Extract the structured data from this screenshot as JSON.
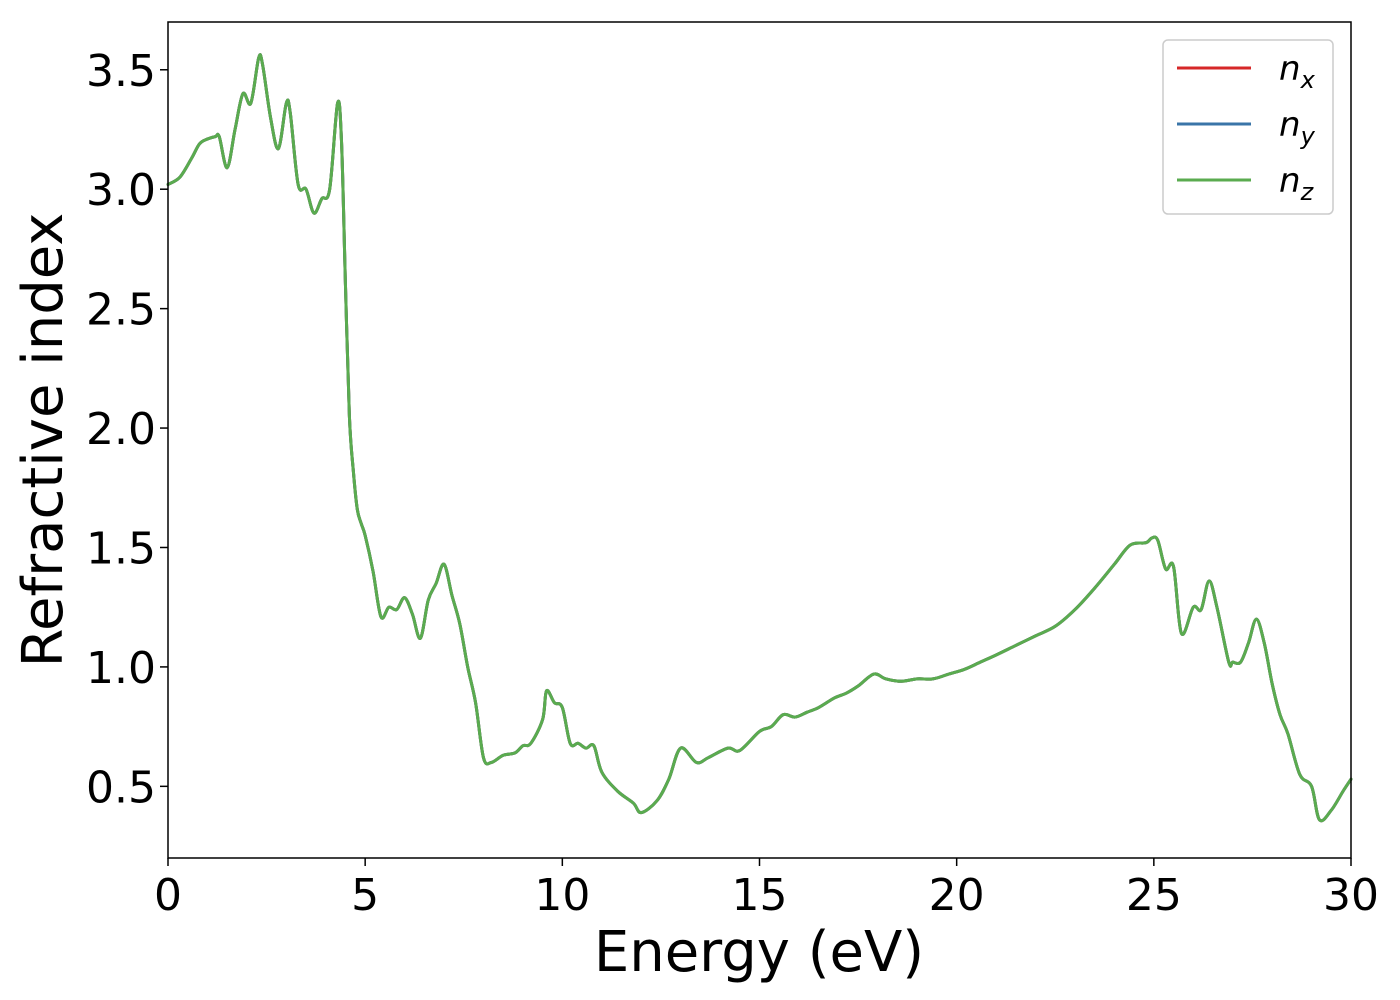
{
  "chart_data": {
    "type": "line",
    "title": "",
    "xlabel": "Energy (eV)",
    "ylabel": "Refractive index",
    "xlim": [
      0,
      30
    ],
    "ylim": [
      0.2,
      3.7
    ],
    "xticks": [
      0,
      5,
      10,
      15,
      20,
      25,
      30
    ],
    "xtick_labels": [
      "0",
      "5",
      "10",
      "15",
      "20",
      "25",
      "30"
    ],
    "yticks": [
      0.5,
      1.0,
      1.5,
      2.0,
      2.5,
      3.0,
      3.5
    ],
    "ytick_labels": [
      "0.5",
      "1.0",
      "1.5",
      "2.0",
      "2.5",
      "3.0",
      "3.5"
    ],
    "grid": false,
    "legend_position": "top-right",
    "colors": {
      "n_x": "#d62728",
      "n_y": "#3a75a8",
      "n_z": "#5aab4f",
      "axes": "#000000",
      "legend_border": "#cccccc"
    },
    "x": [
      0,
      0.3,
      0.6,
      0.8,
      1.0,
      1.2,
      1.3,
      1.5,
      1.7,
      1.9,
      2.1,
      2.3,
      2.4,
      2.6,
      2.8,
      3.0,
      3.1,
      3.3,
      3.5,
      3.7,
      3.9,
      4.1,
      4.3,
      4.4,
      4.5,
      4.6,
      4.7,
      4.8,
      4.9,
      5.0,
      5.2,
      5.4,
      5.6,
      5.8,
      6.0,
      6.2,
      6.4,
      6.6,
      6.8,
      7.0,
      7.2,
      7.4,
      7.6,
      7.8,
      8.0,
      8.2,
      8.5,
      8.8,
      9.0,
      9.2,
      9.5,
      9.6,
      9.8,
      10.0,
      10.2,
      10.4,
      10.6,
      10.8,
      11.0,
      11.4,
      11.8,
      12.0,
      12.4,
      12.7,
      13.0,
      13.4,
      13.7,
      14.2,
      14.5,
      15.0,
      15.3,
      15.6,
      15.9,
      16.2,
      16.5,
      16.9,
      17.2,
      17.5,
      17.9,
      18.2,
      18.6,
      19.0,
      19.4,
      19.8,
      20.2,
      20.6,
      21.0,
      21.5,
      22.0,
      22.5,
      23.0,
      23.5,
      24.0,
      24.4,
      24.8,
      24.95,
      25.1,
      25.3,
      25.5,
      25.7,
      26.0,
      26.2,
      26.4,
      26.6,
      26.9,
      27.0,
      27.2,
      27.4,
      27.6,
      27.8,
      28.0,
      28.2,
      28.4,
      28.7,
      29.0,
      29.2,
      29.5,
      29.8,
      30.0
    ],
    "series": [
      {
        "name": "n_x",
        "values": [
          3.02,
          3.05,
          3.13,
          3.19,
          3.21,
          3.22,
          3.22,
          3.09,
          3.25,
          3.4,
          3.36,
          3.55,
          3.52,
          3.3,
          3.17,
          3.36,
          3.32,
          3.02,
          3.0,
          2.9,
          2.96,
          3.0,
          3.36,
          3.2,
          2.6,
          2.05,
          1.82,
          1.66,
          1.6,
          1.55,
          1.4,
          1.21,
          1.25,
          1.24,
          1.29,
          1.22,
          1.12,
          1.28,
          1.35,
          1.43,
          1.3,
          1.18,
          1.0,
          0.85,
          0.62,
          0.6,
          0.63,
          0.64,
          0.67,
          0.68,
          0.78,
          0.9,
          0.85,
          0.83,
          0.68,
          0.68,
          0.66,
          0.67,
          0.56,
          0.48,
          0.43,
          0.39,
          0.44,
          0.53,
          0.66,
          0.6,
          0.62,
          0.66,
          0.65,
          0.73,
          0.75,
          0.8,
          0.79,
          0.81,
          0.83,
          0.87,
          0.89,
          0.92,
          0.97,
          0.95,
          0.94,
          0.95,
          0.95,
          0.97,
          0.99,
          1.02,
          1.05,
          1.09,
          1.13,
          1.17,
          1.24,
          1.33,
          1.43,
          1.51,
          1.52,
          1.54,
          1.53,
          1.41,
          1.42,
          1.14,
          1.25,
          1.24,
          1.36,
          1.25,
          1.02,
          1.02,
          1.02,
          1.1,
          1.2,
          1.1,
          0.93,
          0.8,
          0.72,
          0.55,
          0.5,
          0.36,
          0.4,
          0.48,
          0.53
        ]
      },
      {
        "name": "n_y",
        "values": [
          3.02,
          3.05,
          3.13,
          3.19,
          3.21,
          3.22,
          3.22,
          3.09,
          3.25,
          3.4,
          3.36,
          3.55,
          3.52,
          3.3,
          3.17,
          3.36,
          3.32,
          3.02,
          3.0,
          2.9,
          2.96,
          3.0,
          3.36,
          3.2,
          2.6,
          2.05,
          1.82,
          1.66,
          1.6,
          1.55,
          1.4,
          1.21,
          1.25,
          1.24,
          1.29,
          1.22,
          1.12,
          1.28,
          1.35,
          1.43,
          1.3,
          1.18,
          1.0,
          0.85,
          0.62,
          0.6,
          0.63,
          0.64,
          0.67,
          0.68,
          0.78,
          0.9,
          0.85,
          0.83,
          0.68,
          0.68,
          0.66,
          0.67,
          0.56,
          0.48,
          0.43,
          0.39,
          0.44,
          0.53,
          0.66,
          0.6,
          0.62,
          0.66,
          0.65,
          0.73,
          0.75,
          0.8,
          0.79,
          0.81,
          0.83,
          0.87,
          0.89,
          0.92,
          0.97,
          0.95,
          0.94,
          0.95,
          0.95,
          0.97,
          0.99,
          1.02,
          1.05,
          1.09,
          1.13,
          1.17,
          1.24,
          1.33,
          1.43,
          1.51,
          1.52,
          1.54,
          1.53,
          1.41,
          1.42,
          1.14,
          1.25,
          1.24,
          1.36,
          1.25,
          1.02,
          1.02,
          1.02,
          1.1,
          1.2,
          1.1,
          0.93,
          0.8,
          0.72,
          0.55,
          0.5,
          0.36,
          0.4,
          0.48,
          0.53
        ]
      },
      {
        "name": "n_z",
        "values": [
          3.02,
          3.05,
          3.13,
          3.19,
          3.21,
          3.22,
          3.22,
          3.09,
          3.25,
          3.4,
          3.36,
          3.55,
          3.52,
          3.3,
          3.17,
          3.36,
          3.32,
          3.02,
          3.0,
          2.9,
          2.96,
          3.0,
          3.36,
          3.2,
          2.6,
          2.05,
          1.82,
          1.66,
          1.6,
          1.55,
          1.4,
          1.21,
          1.25,
          1.24,
          1.29,
          1.22,
          1.12,
          1.28,
          1.35,
          1.43,
          1.3,
          1.18,
          1.0,
          0.85,
          0.62,
          0.6,
          0.63,
          0.64,
          0.67,
          0.68,
          0.78,
          0.9,
          0.85,
          0.83,
          0.68,
          0.68,
          0.66,
          0.67,
          0.56,
          0.48,
          0.43,
          0.39,
          0.44,
          0.53,
          0.66,
          0.6,
          0.62,
          0.66,
          0.65,
          0.73,
          0.75,
          0.8,
          0.79,
          0.81,
          0.83,
          0.87,
          0.89,
          0.92,
          0.97,
          0.95,
          0.94,
          0.95,
          0.95,
          0.97,
          0.99,
          1.02,
          1.05,
          1.09,
          1.13,
          1.17,
          1.24,
          1.33,
          1.43,
          1.51,
          1.52,
          1.54,
          1.53,
          1.41,
          1.42,
          1.14,
          1.25,
          1.24,
          1.36,
          1.25,
          1.02,
          1.02,
          1.02,
          1.1,
          1.2,
          1.1,
          0.93,
          0.8,
          0.72,
          0.55,
          0.5,
          0.36,
          0.4,
          0.48,
          0.53
        ]
      }
    ],
    "legend": [
      {
        "base": "n",
        "sub": "x",
        "color_key": "n_x"
      },
      {
        "base": "n",
        "sub": "y",
        "color_key": "n_y"
      },
      {
        "base": "n",
        "sub": "z",
        "color_key": "n_z"
      }
    ]
  }
}
